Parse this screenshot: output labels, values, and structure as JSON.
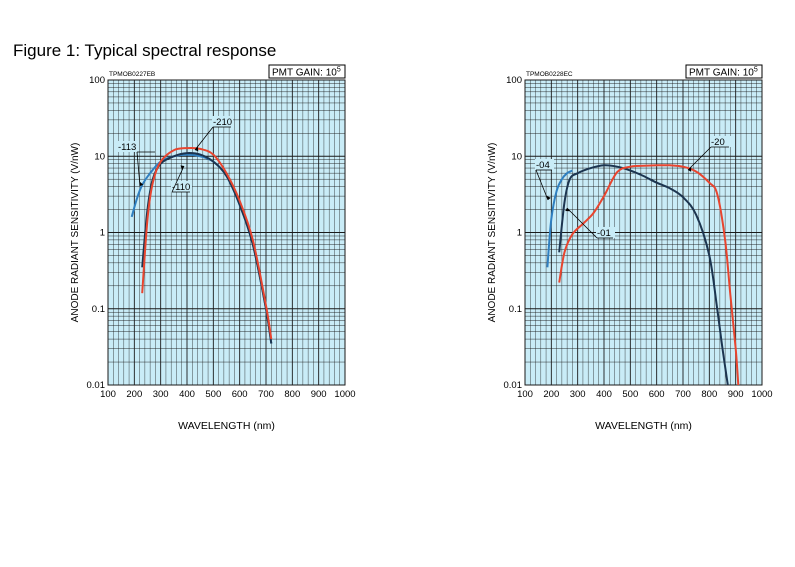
{
  "figure_title": "Figure 1: Typical spectral response",
  "colors": {
    "plot_bg": "#c9ecf7",
    "grid": "#1a1a1a",
    "blue": "#2f7fc0",
    "red": "#e8452f",
    "navy": "#1c3550"
  },
  "chart_data": [
    {
      "type": "line",
      "code": "TPMOB0227EB",
      "gain_label": "PMT GAIN: 10",
      "gain_exp": "5",
      "xlabel": "WAVELENGTH (nm)",
      "ylabel": "ANODE RADIANT SENSITIVITY (V/nW)",
      "x_scale": "linear",
      "y_scale": "log",
      "xlim": [
        100,
        1000
      ],
      "ylim": [
        0.01,
        100
      ],
      "xticks": [
        "100",
        "200",
        "300",
        "400",
        "500",
        "600",
        "700",
        "800",
        "900",
        "1000"
      ],
      "yticks": [
        "0.01",
        "0.1",
        "1",
        "10",
        "100"
      ],
      "grid": true,
      "series": [
        {
          "name": "-113",
          "color": "blue",
          "x": [
            190,
            210,
            230,
            260,
            300,
            350,
            400,
            450,
            500,
            550,
            600,
            650,
            700,
            720
          ],
          "y": [
            1.6,
            2.8,
            4.2,
            6,
            8.5,
            10,
            10.5,
            10,
            8.5,
            5.5,
            2.3,
            0.7,
            0.1,
            0.035
          ]
        },
        {
          "name": "-110",
          "color": "navy",
          "x": [
            230,
            250,
            270,
            300,
            350,
            400,
            450,
            500,
            550,
            600,
            650,
            700,
            720
          ],
          "y": [
            0.35,
            2,
            5,
            8,
            10,
            11,
            10.5,
            8.5,
            5.5,
            2.3,
            0.7,
            0.1,
            0.035
          ]
        },
        {
          "name": "-210",
          "color": "red",
          "x": [
            230,
            250,
            270,
            300,
            350,
            400,
            450,
            500,
            550,
            600,
            650,
            700,
            720
          ],
          "y": [
            0.16,
            1.5,
            4.5,
            8.5,
            12,
            12.8,
            12.5,
            10.5,
            6,
            2.6,
            0.8,
            0.11,
            0.04
          ]
        }
      ],
      "annotations": [
        {
          "text": "-113",
          "series": 0
        },
        {
          "text": "-110",
          "series": 1
        },
        {
          "text": "-210",
          "series": 2
        }
      ]
    },
    {
      "type": "line",
      "code": "TPMOB0228EC",
      "gain_label": "PMT GAIN: 10",
      "gain_exp": "5",
      "xlabel": "WAVELENGTH (nm)",
      "ylabel": "ANODE RADIANT SENSITIVITY (V/nW)",
      "x_scale": "linear",
      "y_scale": "log",
      "xlim": [
        100,
        1000
      ],
      "ylim": [
        0.01,
        100
      ],
      "xticks": [
        "100",
        "200",
        "300",
        "400",
        "500",
        "600",
        "700",
        "800",
        "900",
        "1000"
      ],
      "yticks": [
        "0.01",
        "0.1",
        "1",
        "10",
        "100"
      ],
      "grid": true,
      "series": [
        {
          "name": "-04",
          "color": "blue",
          "x": [
            185,
            200,
            220,
            240,
            260,
            280
          ],
          "y": [
            0.35,
            1.5,
            3.5,
            5,
            6,
            6.5
          ]
        },
        {
          "name": "-01",
          "color": "navy",
          "x": [
            230,
            250,
            270,
            300,
            350,
            400,
            450,
            500,
            550,
            600,
            650,
            700,
            750,
            800,
            830,
            850,
            870
          ],
          "y": [
            0.55,
            2.5,
            5,
            6,
            7,
            7.6,
            7.3,
            6.5,
            5.5,
            4.5,
            3.8,
            2.9,
            1.7,
            0.5,
            0.1,
            0.03,
            0.01
          ]
        },
        {
          "name": "-20",
          "color": "red",
          "x": [
            230,
            250,
            280,
            320,
            360,
            400,
            450,
            500,
            550,
            600,
            650,
            700,
            750,
            800,
            830,
            860,
            880,
            900,
            910
          ],
          "y": [
            0.22,
            0.55,
            0.95,
            1.3,
            1.8,
            3,
            6.2,
            7.3,
            7.5,
            7.6,
            7.6,
            7.3,
            6.3,
            4.5,
            3.2,
            0.8,
            0.15,
            0.03,
            0.01
          ]
        }
      ],
      "annotations": [
        {
          "text": "-04",
          "series": 0
        },
        {
          "text": "-01",
          "series": 1
        },
        {
          "text": "-20",
          "series": 2
        }
      ]
    }
  ]
}
